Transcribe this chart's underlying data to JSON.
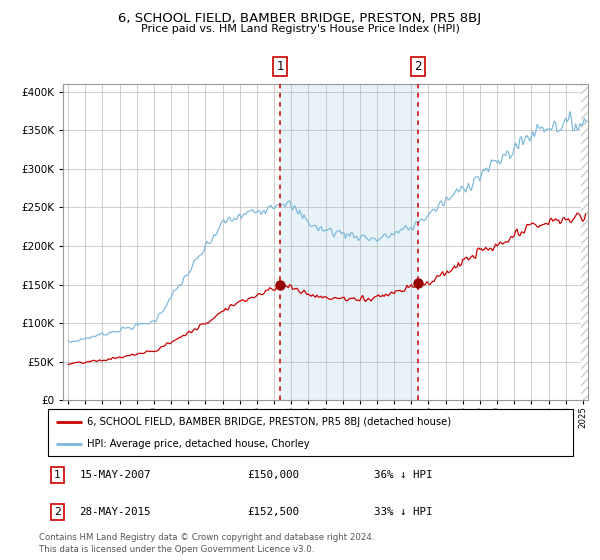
{
  "title": "6, SCHOOL FIELD, BAMBER BRIDGE, PRESTON, PR5 8BJ",
  "subtitle": "Price paid vs. HM Land Registry's House Price Index (HPI)",
  "legend_line1": "6, SCHOOL FIELD, BAMBER BRIDGE, PRESTON, PR5 8BJ (detached house)",
  "legend_line2": "HPI: Average price, detached house, Chorley",
  "sale1_date": "15-MAY-2007",
  "sale1_price": 150000,
  "sale1_pct": "36% ↓ HPI",
  "sale2_date": "28-MAY-2015",
  "sale2_price": 152500,
  "sale2_pct": "33% ↓ HPI",
  "footer": "Contains HM Land Registry data © Crown copyright and database right 2024.\nThis data is licensed under the Open Government Licence v3.0.",
  "hpi_color": "#7ab8d9",
  "price_color": "#cc0000",
  "dot_color": "#990000",
  "vline_color": "#cc0000",
  "shade_color": "#daeaf5",
  "ylim": [
    0,
    410000
  ],
  "background_color": "#ffffff",
  "grid_color": "#bbbbbb",
  "sale1_x": 2007.37,
  "sale2_x": 2015.41,
  "xmin": 1994.7,
  "xmax": 2025.3
}
